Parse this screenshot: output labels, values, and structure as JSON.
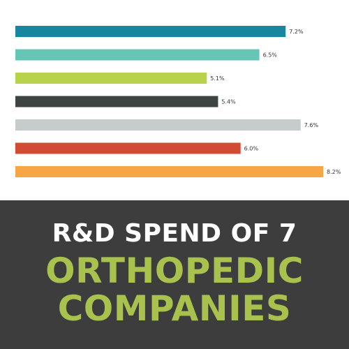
{
  "title": {
    "line1": "R&D SPEND OF 7",
    "line2": "ORTHOPEDIC",
    "line3": "COMPANIES"
  },
  "colors": {
    "banner_background": "#3d3d3d",
    "title_line1": "#ffffff",
    "title_highlight": "#a9c14d"
  },
  "chart_data": {
    "type": "bar",
    "orientation": "horizontal",
    "grid": false,
    "legend": "none",
    "xlim": [
      0,
      8.2
    ],
    "categories": [
      "",
      "",
      "",
      "",
      "",
      "",
      ""
    ],
    "values": [
      7.2,
      6.5,
      5.1,
      5.4,
      7.6,
      6.0,
      8.2
    ],
    "labels": [
      "7.2%",
      "6.5%",
      "5.1%",
      "5.4%",
      "7.6%",
      "6.0%",
      "8.2%"
    ],
    "colors": [
      "#17869e",
      "#66c5b4",
      "#b9d24d",
      "#3e4442",
      "#c6cbcb",
      "#d14b35",
      "#f6a646"
    ]
  }
}
